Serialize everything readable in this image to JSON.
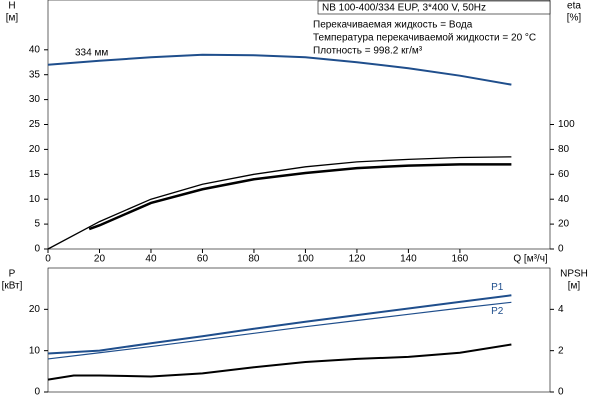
{
  "chart_data": [
    {
      "type": "line",
      "title": "NB 100-400/334 EUP, 3*400 V, 50Hz",
      "annotations": [
        "Перекачиваемая жидкость = Вода",
        "Температура перекачиваемой жидкости = 20 °C",
        "Плотность = 998.2 кг/м³"
      ],
      "curve_label": "334 мм",
      "y_label": [
        "H",
        "[м]"
      ],
      "y2_label": [
        "eta",
        "[%]"
      ],
      "x_label": "Q [м³/ч]",
      "xlim": [
        0,
        195
      ],
      "xticks": [
        0,
        20,
        40,
        60,
        80,
        100,
        120,
        140,
        160
      ],
      "ylim": [
        0,
        50
      ],
      "yticks": [
        0,
        5,
        10,
        15,
        20,
        25,
        30,
        35,
        40
      ],
      "y2lim": [
        0,
        200
      ],
      "y2ticks": [
        0,
        20,
        40,
        60,
        80,
        100
      ],
      "series": [
        {
          "color": "#1f4e8c",
          "width": 2,
          "x": [
            0,
            20,
            40,
            60,
            80,
            100,
            120,
            140,
            160,
            180
          ],
          "values": [
            37,
            37.8,
            38.5,
            39,
            38.9,
            38.5,
            37.5,
            36.3,
            34.8,
            33
          ]
        },
        {
          "color": "#000000",
          "width": 1.3,
          "axis": "y2",
          "x": [
            0,
            20,
            40,
            60,
            80,
            100,
            120,
            140,
            160,
            180
          ],
          "values": [
            0,
            22,
            40,
            52,
            60,
            66,
            70,
            72,
            73.5,
            74
          ]
        },
        {
          "color": "#000000",
          "width": 2.5,
          "axis": "y2",
          "x": [
            16,
            20,
            40,
            60,
            80,
            100,
            120,
            140,
            160,
            180
          ],
          "values": [
            16,
            19,
            37,
            48,
            56,
            61,
            65,
            67,
            68,
            68
          ]
        }
      ]
    },
    {
      "type": "line",
      "y_label": [
        "P",
        "[кВт]"
      ],
      "y2_label": [
        "NPSH",
        "[м]"
      ],
      "xlim": [
        0,
        195
      ],
      "ylim": [
        0,
        30
      ],
      "yticks": [
        0,
        10,
        20
      ],
      "y2lim": [
        0,
        6
      ],
      "y2ticks": [
        0,
        2,
        4
      ],
      "series": [
        {
          "name": "P1",
          "color": "#1f4e8c",
          "width": 2,
          "x": [
            0,
            20,
            40,
            60,
            80,
            100,
            120,
            140,
            160,
            180
          ],
          "values": [
            9.3,
            10,
            11.8,
            13.5,
            15.3,
            17,
            18.6,
            20.2,
            21.8,
            23.4
          ]
        },
        {
          "name": "P2",
          "color": "#1f4e8c",
          "width": 1.2,
          "x": [
            0,
            20,
            40,
            60,
            80,
            100,
            120,
            140,
            160,
            180
          ],
          "values": [
            8,
            9.5,
            11,
            12.6,
            14.2,
            15.8,
            17.3,
            18.8,
            20.3,
            21.7
          ]
        },
        {
          "color": "#000000",
          "width": 2,
          "axis": "y2",
          "x": [
            0,
            10,
            20,
            40,
            60,
            80,
            100,
            120,
            140,
            160,
            180
          ],
          "values": [
            0.6,
            0.8,
            0.8,
            0.75,
            0.9,
            1.2,
            1.45,
            1.6,
            1.7,
            1.9,
            2.3
          ]
        }
      ]
    }
  ]
}
